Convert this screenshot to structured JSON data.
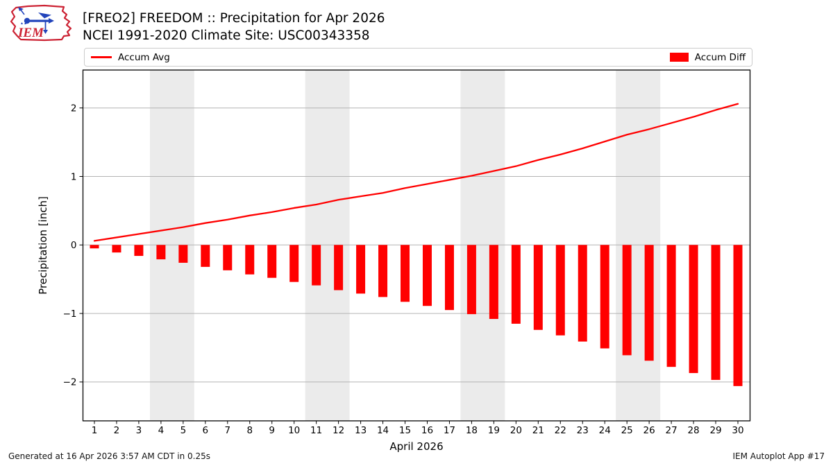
{
  "header": {
    "title_line1": "[FREO2] FREEDOM :: Precipitation for Apr 2026",
    "title_line2": "NCEI 1991-2020 Climate Site: USC00343358",
    "logo_text": "IEM"
  },
  "legend": {
    "items": [
      {
        "label": "Accum Avg",
        "swatch": "line",
        "color": "#ff0000"
      },
      {
        "label": "Accum Diff",
        "swatch": "rect",
        "color": "#ff0000"
      }
    ]
  },
  "chart_data": {
    "type": "bar",
    "x": [
      1,
      2,
      3,
      4,
      5,
      6,
      7,
      8,
      9,
      10,
      11,
      12,
      13,
      14,
      15,
      16,
      17,
      18,
      19,
      20,
      21,
      22,
      23,
      24,
      25,
      26,
      27,
      28,
      29,
      30
    ],
    "series": [
      {
        "name": "Accum Avg",
        "type": "line",
        "color": "#ff0000",
        "values": [
          0.06,
          0.11,
          0.16,
          0.21,
          0.26,
          0.32,
          0.37,
          0.43,
          0.48,
          0.54,
          0.59,
          0.66,
          0.71,
          0.76,
          0.83,
          0.89,
          0.95,
          1.01,
          1.08,
          1.15,
          1.24,
          1.32,
          1.41,
          1.51,
          1.61,
          1.69,
          1.78,
          1.87,
          1.97,
          2.06
        ]
      },
      {
        "name": "Accum Diff",
        "type": "bar",
        "color": "#ff0000",
        "values": [
          -0.05,
          -0.11,
          -0.16,
          -0.21,
          -0.26,
          -0.32,
          -0.37,
          -0.43,
          -0.48,
          -0.54,
          -0.59,
          -0.66,
          -0.71,
          -0.76,
          -0.83,
          -0.89,
          -0.95,
          -1.01,
          -1.08,
          -1.15,
          -1.24,
          -1.32,
          -1.41,
          -1.51,
          -1.61,
          -1.69,
          -1.78,
          -1.87,
          -1.97,
          -2.06
        ]
      }
    ],
    "xlabel": "April 2026",
    "ylabel": "Precipitation [inch]",
    "yticks": [
      -2,
      -1,
      0,
      1,
      2
    ],
    "ylim": [
      -2.55,
      2.55
    ],
    "grid": true,
    "grid_color": "#b3b3b3",
    "weekend_bands": [
      [
        4,
        5
      ],
      [
        11,
        12
      ],
      [
        18,
        19
      ],
      [
        25,
        26
      ]
    ],
    "band_color": "#ebebeb",
    "legend_position": "top"
  },
  "footer": {
    "left": "Generated at 16 Apr 2026 3:57 AM CDT in 0.25s",
    "right": "IEM Autoplot App #17"
  }
}
